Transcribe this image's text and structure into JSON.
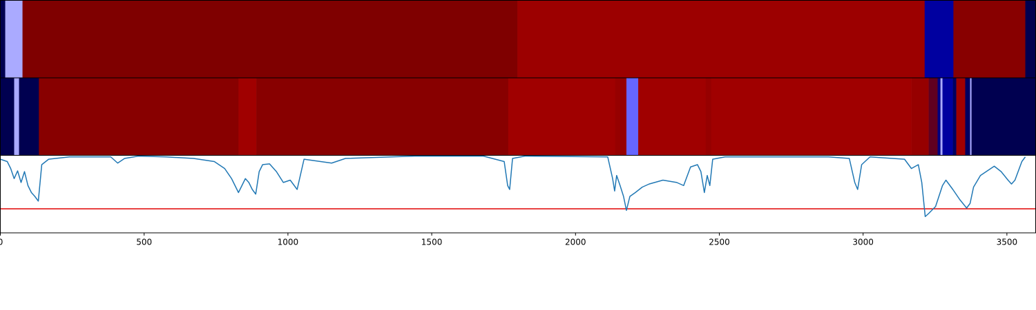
{
  "chart_data": [
    {
      "type": "strip",
      "xlim": [
        0,
        3600
      ],
      "bins": [
        0,
        17,
        77,
        1798,
        3214,
        3314,
        3564,
        3600
      ],
      "colors": [
        "#000050",
        "#aaaaff",
        "#7f0000",
        "#9c0000",
        "#0000a0",
        "#880000",
        "#000050"
      ]
    },
    {
      "type": "strip",
      "xlim": [
        0,
        3600
      ],
      "bins": [
        0,
        48,
        65,
        134,
        828,
        890,
        1766,
        2138,
        2177,
        2218,
        2453,
        2472,
        3168,
        3228,
        3259,
        3269,
        3276,
        3312,
        3324,
        3355,
        3372,
        3377,
        3600
      ],
      "colors": [
        "#000050",
        "#aaaaff",
        "#000050",
        "#880000",
        "#a00000",
        "#880000",
        "#a00000",
        "#960000",
        "#6666ff",
        "#a00000",
        "#960000",
        "#a00000",
        "#960000",
        "#600020",
        "#000080",
        "#aaaaff",
        "#0000a0",
        "#000060",
        "#a00000",
        "#000060",
        "#aaaaff",
        "#000050"
      ]
    },
    {
      "type": "line",
      "xlim": [
        0,
        3600
      ],
      "ylim": [
        0,
        1
      ],
      "xticks": [
        0,
        500,
        1000,
        1500,
        2000,
        2500,
        3000,
        3500
      ],
      "hline": {
        "value": 0.31,
        "color": "#e00000"
      },
      "color": "#1f77b4",
      "x": [
        0,
        24,
        36,
        48,
        60,
        72,
        84,
        96,
        108,
        120,
        132,
        144,
        168,
        240,
        384,
        408,
        432,
        480,
        576,
        672,
        744,
        780,
        804,
        828,
        840,
        852,
        864,
        876,
        888,
        900,
        912,
        936,
        960,
        984,
        1008,
        1032,
        1056,
        1152,
        1200,
        1440,
        1680,
        1752,
        1764,
        1771,
        1781,
        1824,
        2112,
        2129,
        2136,
        2143,
        2155,
        2167,
        2177,
        2189,
        2208,
        2232,
        2256,
        2304,
        2352,
        2376,
        2400,
        2424,
        2436,
        2448,
        2458,
        2467,
        2477,
        2520,
        2880,
        2952,
        2971,
        2981,
        2995,
        3024,
        3144,
        3168,
        3192,
        3204,
        3216,
        3228,
        3252,
        3276,
        3288,
        3312,
        3336,
        3360,
        3372,
        3384,
        3408,
        3432,
        3456,
        3480,
        3504,
        3516,
        3528,
        3552,
        3564
      ],
      "values": [
        0.95,
        0.92,
        0.83,
        0.7,
        0.8,
        0.65,
        0.79,
        0.61,
        0.52,
        0.47,
        0.41,
        0.88,
        0.95,
        0.98,
        0.98,
        0.9,
        0.96,
        0.99,
        0.98,
        0.96,
        0.92,
        0.83,
        0.7,
        0.52,
        0.61,
        0.7,
        0.65,
        0.56,
        0.5,
        0.79,
        0.88,
        0.89,
        0.79,
        0.65,
        0.68,
        0.56,
        0.95,
        0.9,
        0.96,
        0.99,
        0.99,
        0.92,
        0.61,
        0.56,
        0.96,
        0.99,
        0.98,
        0.7,
        0.54,
        0.74,
        0.61,
        0.47,
        0.29,
        0.47,
        0.52,
        0.59,
        0.63,
        0.68,
        0.65,
        0.61,
        0.85,
        0.88,
        0.79,
        0.52,
        0.74,
        0.61,
        0.95,
        0.98,
        0.98,
        0.96,
        0.65,
        0.56,
        0.88,
        0.98,
        0.95,
        0.83,
        0.88,
        0.65,
        0.21,
        0.25,
        0.34,
        0.61,
        0.68,
        0.56,
        0.43,
        0.32,
        0.38,
        0.59,
        0.74,
        0.8,
        0.86,
        0.79,
        0.68,
        0.63,
        0.68,
        0.92,
        0.98
      ]
    }
  ]
}
